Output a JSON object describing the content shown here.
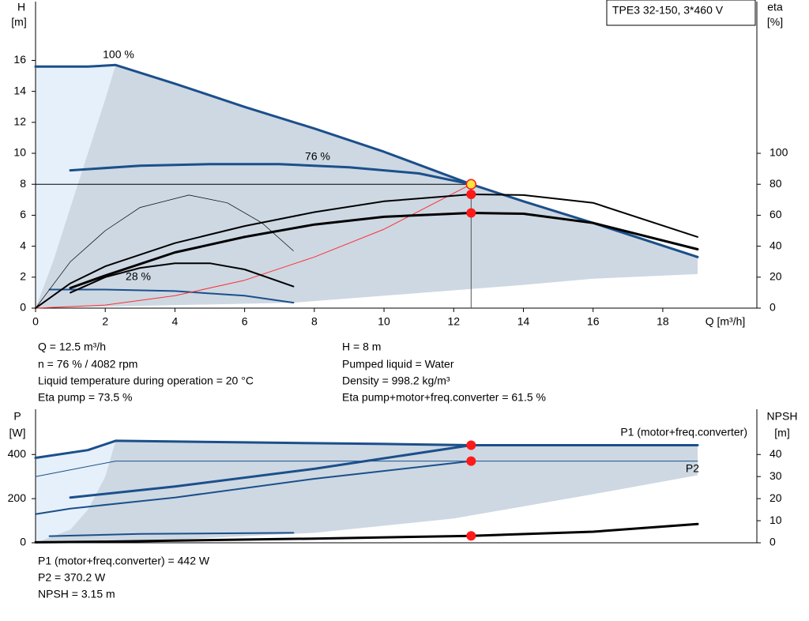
{
  "header": {
    "title": "TPE3 32-150, 3*460 V"
  },
  "info_top": {
    "left": [
      "Q = 12.5 m³/h",
      "n = 76 % / 4082 rpm",
      "Liquid temperature during operation = 20 °C",
      "Eta pump = 73.5 %"
    ],
    "right": [
      "H = 8 m",
      "Pumped liquid = Water",
      "Density = 998.2 kg/m³",
      "Eta pump+motor+freq.converter = 61.5 %"
    ]
  },
  "info_bottom": [
    "P1 (motor+freq.converter) = 442 W",
    "P2 = 370.2 W",
    "NPSH = 3.15 m"
  ],
  "chart_data": [
    {
      "type": "line",
      "y_label": "H",
      "y_unit": "[m]",
      "y2_label": "eta",
      "y2_unit": "[%]",
      "x_label": "Q [m³/h]",
      "xlim": [
        0,
        20.7
      ],
      "ylim": [
        0,
        19.8
      ],
      "y2lim": [
        0,
        198
      ],
      "xticks": [
        0,
        2,
        4,
        6,
        8,
        10,
        12,
        14,
        16,
        18
      ],
      "yticks": [
        0,
        2,
        4,
        6,
        8,
        10,
        12,
        14,
        16
      ],
      "y2ticks": [
        0,
        20,
        40,
        60,
        80,
        100
      ],
      "crosshair": true,
      "series": [
        {
          "name": "100 %",
          "kind": "line",
          "style": "thick",
          "color": "#1b4f8a",
          "x": [
            0,
            1.5,
            2.3,
            4,
            6,
            8,
            10,
            12.5,
            14,
            16,
            19
          ],
          "values": [
            15.6,
            15.6,
            15.7,
            14.5,
            13,
            11.6,
            10.1,
            8,
            6.9,
            5.5,
            3.3
          ]
        },
        {
          "name": "76 %",
          "kind": "line",
          "style": "thick",
          "color": "#1b4f8a",
          "x": [
            1,
            3,
            5,
            7,
            9,
            11,
            12.5
          ],
          "values": [
            8.9,
            9.2,
            9.3,
            9.3,
            9.1,
            8.7,
            8
          ]
        },
        {
          "name": "28 %",
          "kind": "line",
          "style": "medium",
          "color": "#1b4f8a",
          "x": [
            0.4,
            2,
            4,
            6,
            7.4
          ],
          "values": [
            1.2,
            1.2,
            1.1,
            0.8,
            0.35
          ]
        },
        {
          "kind": "area",
          "color": "#e6f0fa",
          "x": [
            0,
            0,
            1.5,
            2.3,
            2,
            1.5,
            1,
            0.5
          ],
          "values": [
            0,
            15.6,
            15.6,
            15.7,
            13.5,
            10,
            6.5,
            3
          ]
        },
        {
          "kind": "area",
          "color": "#cdd8e3",
          "x": [
            0,
            0.5,
            1,
            1.5,
            2,
            2.3,
            4,
            6,
            8,
            10,
            12.5,
            14,
            16,
            19,
            19,
            16,
            14,
            10,
            7.4
          ],
          "values": [
            0,
            3,
            6.5,
            10,
            13.5,
            15.7,
            14.5,
            13,
            11.6,
            10.1,
            8,
            6.9,
            5.5,
            3.3,
            2.2,
            1.9,
            1.5,
            0.8,
            0.35
          ]
        },
        {
          "kind": "line",
          "style": "thin",
          "color": "#ff3030",
          "x": [
            0,
            2,
            4,
            6,
            8,
            10,
            12.5
          ],
          "values": [
            0,
            0.2,
            0.8,
            1.8,
            3.3,
            5.1,
            8
          ]
        },
        {
          "kind": "line",
          "style": "medium",
          "color": "#000000",
          "axis": "y2",
          "x": [
            0,
            1,
            2,
            4,
            6,
            8,
            10,
            12.5,
            14,
            16,
            19
          ],
          "values": [
            0,
            16,
            27,
            42,
            53,
            62,
            69,
            73.5,
            73,
            68,
            46
          ]
        },
        {
          "kind": "line",
          "style": "thick",
          "color": "#000000",
          "axis": "y2",
          "x": [
            1,
            2,
            4,
            6,
            8,
            10,
            12.5,
            14,
            16,
            19
          ],
          "values": [
            13,
            21,
            36,
            46,
            54,
            59,
            61.5,
            61,
            55,
            38
          ]
        },
        {
          "kind": "line",
          "style": "hair",
          "color": "#000000",
          "axis": "y2",
          "x": [
            0,
            1,
            2,
            3,
            4.4,
            5.5,
            6.5,
            7.4
          ],
          "values": [
            0,
            30,
            50,
            65,
            73,
            68,
            55,
            37
          ]
        },
        {
          "kind": "line",
          "style": "medium",
          "color": "#000000",
          "axis": "y2",
          "x": [
            1,
            2,
            3,
            4,
            5,
            6,
            7.4
          ],
          "values": [
            10,
            20,
            26,
            29,
            29,
            25,
            14
          ]
        }
      ],
      "points": [
        {
          "x": 12.5,
          "value": 8,
          "color": "#f5e642"
        },
        {
          "x": 12.5,
          "value": 73.5,
          "axis": "y2",
          "color": "#ff1a1a"
        },
        {
          "x": 12.5,
          "value": 61.5,
          "axis": "y2",
          "color": "#ff1a1a"
        }
      ]
    },
    {
      "type": "line",
      "y_label": "P",
      "y_unit": "[W]",
      "y2_label": "NPSH",
      "y2_unit": "[m]",
      "xlim": [
        0,
        20.7
      ],
      "ylim": [
        0,
        605
      ],
      "y2lim": [
        0,
        60.5
      ],
      "yticks": [
        0,
        200,
        400
      ],
      "y2ticks": [
        0,
        10,
        20,
        30,
        40
      ],
      "series": [
        {
          "name": "P1 (motor+freq.converter)",
          "kind": "line",
          "style": "thick",
          "color": "#1b4f8a",
          "x": [
            0,
            1.5,
            2.3,
            6,
            10,
            12.5,
            16,
            19
          ],
          "values": [
            385,
            420,
            462,
            455,
            448,
            442,
            442,
            442
          ]
        },
        {
          "kind": "line",
          "style": "thick",
          "color": "#1b4f8a",
          "x": [
            1,
            4,
            8,
            12.5
          ],
          "values": [
            205,
            255,
            335,
            442
          ]
        },
        {
          "name": "P2",
          "kind": "line",
          "style": "thin",
          "color": "#1b4f8a",
          "x": [
            0,
            2.3,
            12.5,
            19
          ],
          "values": [
            300,
            370,
            370,
            370
          ]
        },
        {
          "kind": "area",
          "color": "#e6f0fa",
          "x": [
            0,
            0,
            1.5,
            2.3,
            2,
            1.5,
            1
          ],
          "values": [
            0,
            390,
            420,
            462,
            300,
            150,
            60
          ]
        },
        {
          "kind": "area",
          "color": "#cdd8e3",
          "x": [
            0,
            1,
            1.5,
            2,
            2.3,
            6,
            10,
            12.5,
            16,
            19,
            19,
            16,
            12,
            8,
            4,
            1
          ],
          "values": [
            0,
            60,
            150,
            300,
            462,
            455,
            448,
            442,
            442,
            442,
            306,
            220,
            110,
            45,
            15,
            4
          ]
        },
        {
          "kind": "line",
          "style": "medium",
          "color": "#1b4f8a",
          "x": [
            0,
            1,
            4,
            8,
            12.5
          ],
          "values": [
            130,
            155,
            205,
            290,
            370
          ]
        },
        {
          "kind": "line",
          "style": "medium",
          "color": "#1b4f8a",
          "x": [
            0.4,
            3,
            7.4
          ],
          "values": [
            30,
            40,
            45
          ]
        },
        {
          "kind": "line",
          "style": "thick",
          "color": "#000000",
          "axis": "y2",
          "x": [
            0,
            2,
            4,
            8,
            12.5,
            16,
            19
          ],
          "values": [
            0.2,
            0.5,
            1,
            1.9,
            3.15,
            5,
            8.5
          ]
        }
      ],
      "points": [
        {
          "x": 12.5,
          "value": 442,
          "color": "#ff1a1a"
        },
        {
          "x": 12.5,
          "value": 370.2,
          "color": "#ff1a1a"
        },
        {
          "x": 12.5,
          "value": 3.15,
          "axis": "y2",
          "color": "#ff1a1a"
        }
      ]
    }
  ]
}
